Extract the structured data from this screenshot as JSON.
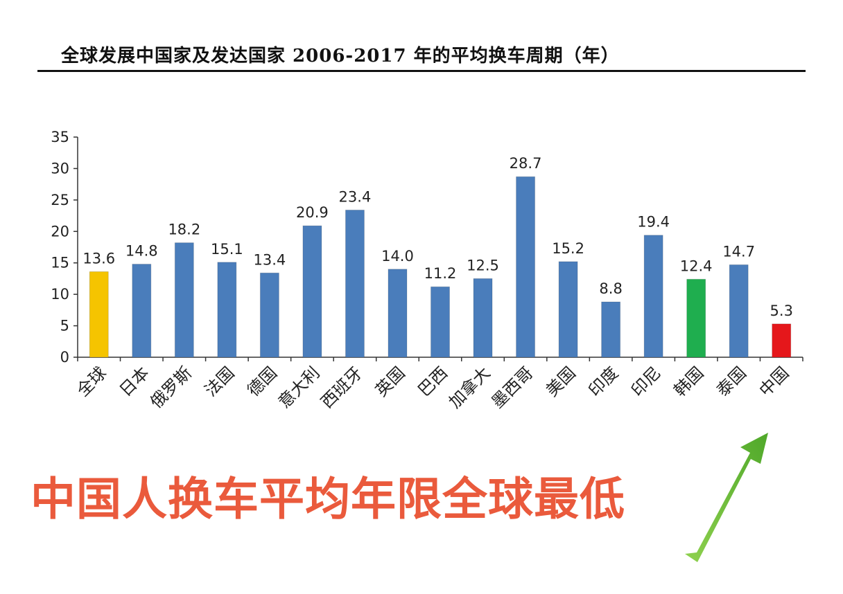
{
  "title": "全球发展中国家及发达国家 2006-2017 年的平均换车周期（年）",
  "annotation": "中国人换车平均年限全球最低",
  "colors": {
    "default_bar": "#4a7dbb",
    "highlight_global": "#f5c400",
    "highlight_korea": "#1fae4f",
    "highlight_china": "#e5171b",
    "annotation_text": "#ea5a3c",
    "arrow": "#6cc12f"
  },
  "chart_data": {
    "type": "bar",
    "title": "全球发展中国家及发达国家 2006-2017 年的平均换车周期（年）",
    "ylim": [
      0,
      35
    ],
    "yticks": [
      0,
      5,
      10,
      15,
      20,
      25,
      30,
      35
    ],
    "grid": false,
    "legend": "none",
    "categories": [
      "全球",
      "日本",
      "俄罗斯",
      "法国",
      "德国",
      "意大利",
      "西班牙",
      "英国",
      "巴西",
      "加拿大",
      "墨西哥",
      "美国",
      "印度",
      "印尼",
      "韩国",
      "泰国",
      "中国"
    ],
    "values": [
      13.6,
      14.8,
      18.2,
      15.1,
      13.4,
      20.9,
      23.4,
      14.0,
      11.2,
      12.5,
      28.7,
      15.2,
      8.8,
      19.4,
      12.4,
      14.7,
      5.3
    ],
    "value_labels": [
      "13.6",
      "14.8",
      "18.2",
      "15.1",
      "13.4",
      "20.9",
      "23.4",
      "14.0",
      "11.2",
      "12.5",
      "28.7",
      "15.2",
      "8.8",
      "19.4",
      "12.4",
      "14.7",
      "5.3"
    ],
    "bar_colors": [
      "#f5c400",
      "#4a7dbb",
      "#4a7dbb",
      "#4a7dbb",
      "#4a7dbb",
      "#4a7dbb",
      "#4a7dbb",
      "#4a7dbb",
      "#4a7dbb",
      "#4a7dbb",
      "#4a7dbb",
      "#4a7dbb",
      "#4a7dbb",
      "#4a7dbb",
      "#1fae4f",
      "#4a7dbb",
      "#e5171b"
    ]
  }
}
